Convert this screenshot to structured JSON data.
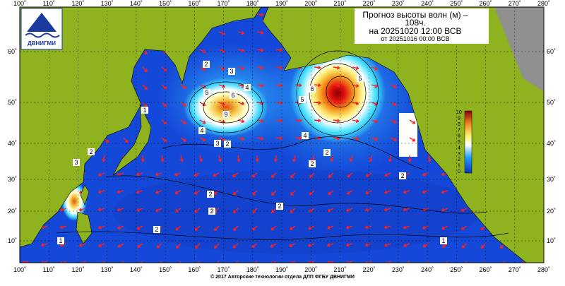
{
  "title": {
    "line1": "Прогноз высоты волн (м) –",
    "line2": "108ч.",
    "line3": "на 20251020 12:00 ВСВ",
    "line4": "от 20251016 00:00 ВСВ"
  },
  "logo": "ДВНИГМИ",
  "footer": "© 2017 Авторские технологии отдела ДЛП ФГБУ ДВНИГМИ",
  "longitude_labels": [
    "100˚",
    "110˚",
    "120˚",
    "130˚",
    "140˚",
    "150˚",
    "160˚",
    "170˚",
    "180˚",
    "190˚",
    "200˚",
    "210˚",
    "220˚",
    "230˚",
    "240˚",
    "250˚",
    "260˚",
    "270˚",
    "280˚"
  ],
  "latitude_labels": [
    "60˚",
    "50˚",
    "40˚",
    "30˚",
    "20˚",
    "10˚"
  ],
  "colorbar_labels": [
    "10",
    "9",
    "8",
    "7",
    "6",
    "5",
    "4",
    "3",
    "2",
    "1",
    "0"
  ],
  "contour_labels": [
    "2",
    "3",
    "4",
    "5",
    "6",
    "9",
    "2",
    "3",
    "2",
    "2",
    "2",
    "2",
    "1",
    "1",
    "4",
    "5",
    "6",
    "5",
    "2",
    "2",
    "2",
    "1",
    "3",
    "2",
    "4"
  ]
}
